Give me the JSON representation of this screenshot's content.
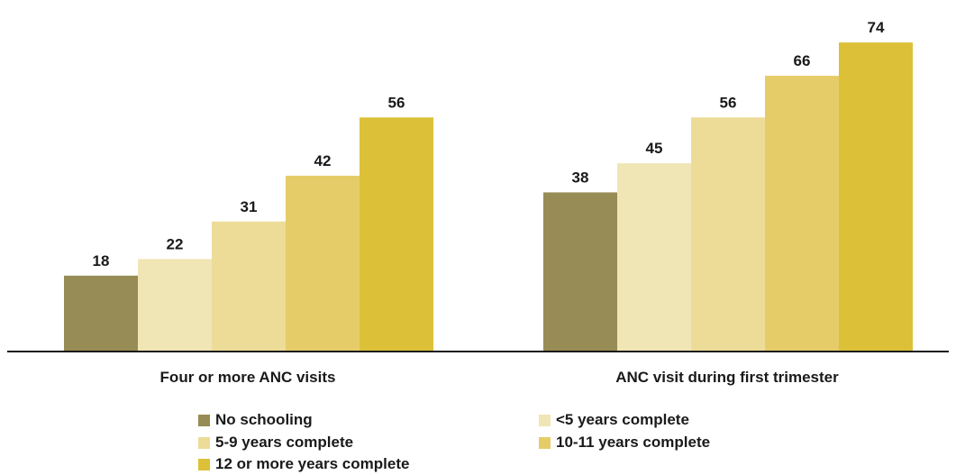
{
  "chart_data": {
    "type": "bar",
    "categories": [
      "Four or more ANC visits",
      "ANC visit during first trimester"
    ],
    "series": [
      {
        "name": "No schooling",
        "color": "#978c55",
        "values": [
          18,
          38
        ]
      },
      {
        "name": "<5 years complete",
        "color": "#f0e5b5",
        "values": [
          22,
          45
        ]
      },
      {
        "name": "5-9 years complete",
        "color": "#ecdc98",
        "values": [
          31,
          56
        ]
      },
      {
        "name": "10-11 years complete",
        "color": "#e6cc69",
        "values": [
          42,
          66
        ]
      },
      {
        "name": "12 or more years complete",
        "color": "#dcc138",
        "values": [
          56,
          74
        ]
      }
    ],
    "ylim": [
      0,
      80
    ],
    "grid": false,
    "legend_position": "bottom",
    "data_labels": true
  }
}
